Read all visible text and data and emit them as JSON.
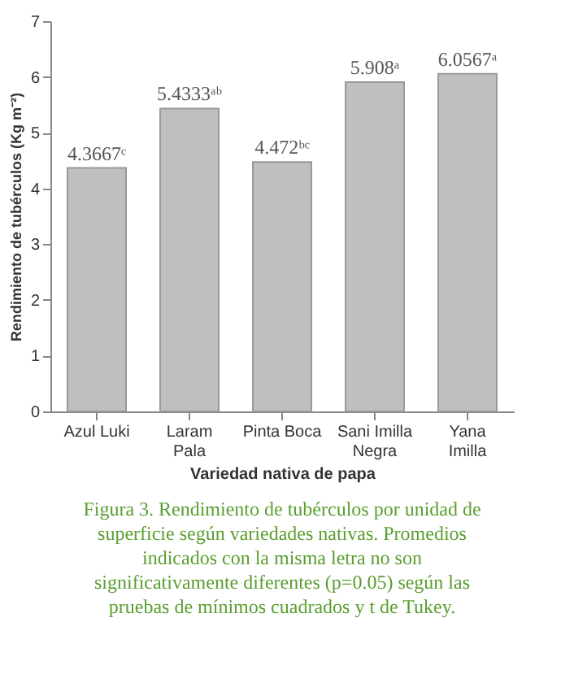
{
  "chart_data": {
    "type": "bar",
    "categories": [
      "Azul Luki",
      "Laram\nPala",
      "Pinta Boca",
      "Sani Imilla\nNegra",
      "Yana\nImilla"
    ],
    "values": [
      4.3667,
      5.4333,
      4.472,
      5.908,
      6.0567
    ],
    "value_labels": [
      "4.3667ᶜ",
      "5.4333ᵃᵇ",
      "4.472ᵇᶜ",
      "5.908ᵃ",
      "6.0567ᵃ"
    ],
    "color": "#bfbfbf",
    "xlabel": "Variedad nativa de papa",
    "ylabel": "Rendimiento de tubérculos (Kg m⁻²)",
    "ylim": [
      0,
      7
    ],
    "yticks": [
      0,
      1,
      2,
      3,
      4,
      5,
      6,
      7
    ],
    "grid": false,
    "annotations": [
      "Figura 3. Rendimiento de tubérculos por unidad de superficie según variedades nativas. Promedios indicados con la misma letra no son significativamente diferentes (p=0.05) según las pruebas de mínimos cuadrados y t de Tukey."
    ]
  }
}
